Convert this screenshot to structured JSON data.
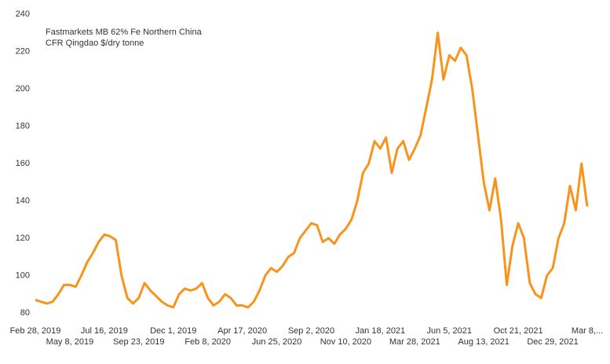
{
  "chart_data": {
    "type": "line",
    "title": "Fastmarkets MB 62% Fe Northern China",
    "subtitle": "CFR Qingdao $/dry tonne",
    "categories": [
      "Feb 28, 2019",
      null,
      null,
      null,
      null,
      null,
      "May 8, 2019",
      null,
      null,
      null,
      null,
      null,
      "Jul 16, 2019",
      null,
      null,
      null,
      null,
      null,
      "Sep 23, 2019",
      null,
      null,
      null,
      null,
      null,
      "Dec 1, 2019",
      null,
      null,
      null,
      null,
      null,
      "Feb 8, 2020",
      null,
      null,
      null,
      null,
      null,
      "Apr 17, 2020",
      null,
      null,
      null,
      null,
      null,
      "Jun 25, 2020",
      null,
      null,
      null,
      null,
      null,
      "Sep 2, 2020",
      null,
      null,
      null,
      null,
      null,
      "Nov 10, 2020",
      null,
      null,
      null,
      null,
      null,
      "Jan 18, 2021",
      null,
      null,
      null,
      null,
      null,
      "Mar 28, 2021",
      null,
      null,
      null,
      null,
      null,
      "Jun 5, 2021",
      null,
      null,
      null,
      null,
      null,
      "Aug 13, 2021",
      null,
      null,
      null,
      null,
      null,
      "Oct 21, 2021",
      null,
      null,
      null,
      null,
      null,
      "Dec 29, 2021",
      null,
      null,
      null,
      null,
      null,
      "Mar 8,..."
    ],
    "series": [
      {
        "name": "Fastmarkets MB 62% Fe Northern China",
        "color": "#f7941d",
        "values": [
          87,
          86,
          85,
          86,
          90,
          95,
          95,
          94,
          100,
          107,
          112,
          118,
          122,
          121,
          119,
          100,
          88,
          85,
          88,
          96,
          92,
          89,
          86,
          84,
          83,
          90,
          93,
          92,
          93,
          96,
          88,
          84,
          86,
          90,
          88,
          84,
          84,
          83,
          86,
          92,
          100,
          104,
          102,
          105,
          110,
          112,
          120,
          124,
          128,
          127,
          118,
          120,
          117,
          122,
          125,
          130,
          140,
          155,
          160,
          172,
          168,
          174,
          155,
          168,
          172,
          162,
          168,
          175,
          190,
          205,
          230,
          205,
          218,
          215,
          222,
          218,
          200,
          175,
          150,
          135,
          152,
          130,
          95,
          116,
          128,
          120,
          96,
          90,
          88,
          100,
          104,
          120,
          128,
          148,
          135,
          160,
          137
        ]
      }
    ],
    "ylim": [
      80,
      240
    ],
    "yticks": [
      80,
      100,
      120,
      140,
      160,
      180,
      200,
      220,
      240
    ],
    "grid": false
  }
}
